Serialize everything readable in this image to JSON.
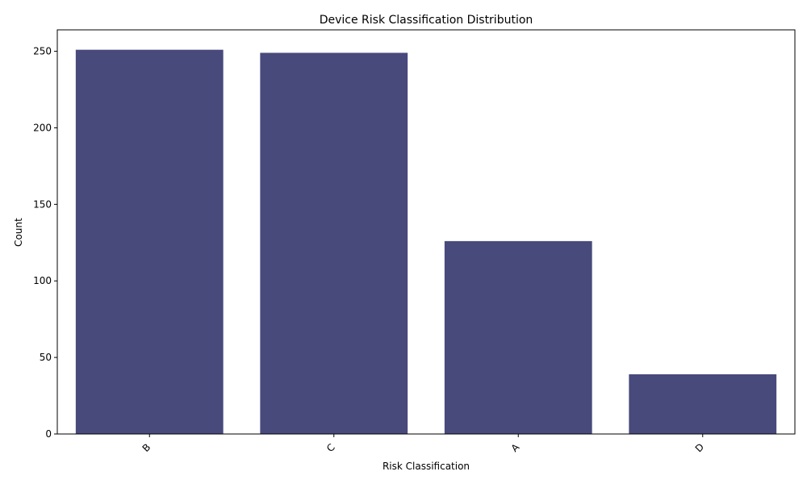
{
  "chart_data": {
    "type": "bar",
    "title": "Device Risk Classification Distribution",
    "xlabel": "Risk Classification",
    "ylabel": "Count",
    "categories": [
      "B",
      "C",
      "A",
      "D"
    ],
    "values": [
      251,
      249,
      126,
      39
    ],
    "ylim": [
      0,
      264
    ],
    "yticks": [
      0,
      50,
      100,
      150,
      200,
      250
    ],
    "xtick_rotation": "45 degrees",
    "grid": false,
    "legend": "none",
    "bar_color": "#484a7c"
  }
}
